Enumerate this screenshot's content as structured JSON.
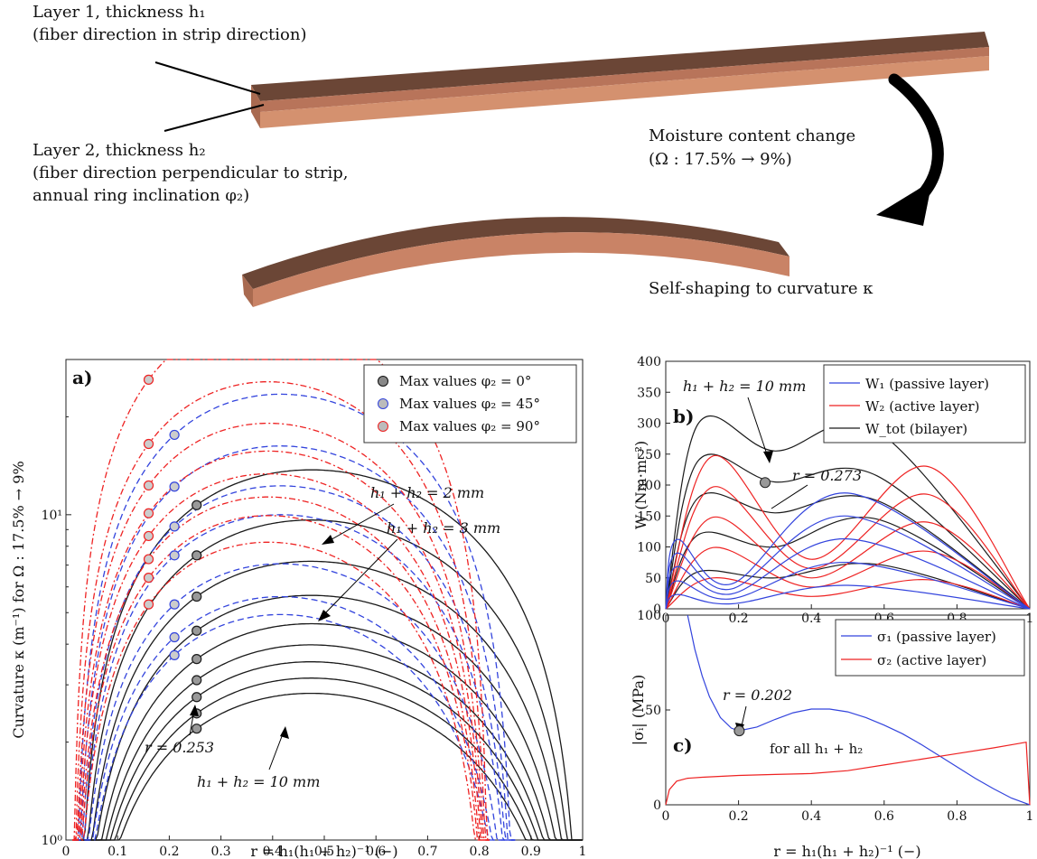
{
  "illustration": {
    "layer1_line1": "Layer 1, thickness h₁",
    "layer1_line2": "(fiber direction in strip direction)",
    "layer2_line1": "Layer 2, thickness h₂",
    "layer2_line2": "(fiber direction perpendicular to strip,",
    "layer2_line3": "annual ring inclination φ₂)",
    "moisture_line1": "Moisture content change",
    "moisture_line2": "(Ω : 17.5% → 9%)",
    "self_shaping": "Self-shaping to curvature κ",
    "colors": {
      "wood_top": "#6b4636",
      "wood_side": "#c98366",
      "arrow": "#000000"
    }
  },
  "chart_data": [
    {
      "panel": "a)",
      "type": "line",
      "xlabel": "r = h₁(h₁ + h₂)⁻¹ (−)",
      "ylabel": "Curvature κ (m⁻¹) for Ω : 17.5% → 9%",
      "xlim": [
        0,
        1
      ],
      "ylim": [
        1,
        30
      ],
      "yscale": "log",
      "xticks": [
        "0",
        "0.1",
        "0.2",
        "0.3",
        "0.4",
        "0.5",
        "0.6",
        "0.7",
        "0.8",
        "0.9",
        "1"
      ],
      "yticks": [
        "10⁰",
        "10¹"
      ],
      "legend_position": "top-right",
      "legend": [
        "Max values φ₂ = 0°",
        "Max values φ₂ = 45°",
        "Max values φ₂ = 90°"
      ],
      "annotations": [
        "h₁ + h₂ = 2 mm",
        "h₁ + h₂ = 3 mm",
        "h₁ + h₂ = 10 mm",
        "r = 0.253"
      ],
      "families": [
        {
          "phi": 0,
          "style": "solid",
          "color": "#1a1a1a",
          "r_max": 0.253,
          "x_zero": 0.02,
          "x_end": 1.0,
          "peaks": [
            10.7,
            7.5,
            5.6,
            4.4,
            3.6,
            3.1,
            2.75,
            2.45,
            2.2
          ]
        },
        {
          "phi": 45,
          "style": "dashed",
          "color": "#3344dd",
          "r_max": 0.21,
          "x_zero": 0.016,
          "x_end": 0.87,
          "peaks": [
            17.6,
            12.2,
            9.2,
            7.5,
            5.3,
            4.2,
            3.7
          ]
        },
        {
          "phi": 90,
          "style": "dashdot",
          "color": "#ee2222",
          "r_max": 0.16,
          "x_zero": 0.012,
          "x_end": 0.82,
          "peaks": [
            26.0,
            16.5,
            12.3,
            10.1,
            8.6,
            7.3,
            6.4,
            5.3
          ]
        }
      ]
    },
    {
      "panel": "b)",
      "type": "line",
      "xlabel": "",
      "ylabel": "W (Nm·m⁻²)",
      "xlim": [
        0,
        1
      ],
      "ylim": [
        0,
        400
      ],
      "xticks": [
        "0",
        "0.2",
        "0.4",
        "0.6",
        "0.8",
        "1"
      ],
      "yticks": [
        "0",
        "50",
        "100",
        "150",
        "200",
        "250",
        "300",
        "350",
        "400"
      ],
      "legend_position": "top-right",
      "legend": [
        "W₁ (passive layer)",
        "W₂ (active layer)",
        "W_tot (bilayer)"
      ],
      "annotations": [
        "h₁ + h₂ = 10 mm",
        "r = 0.273"
      ],
      "marker": {
        "x": 0.273,
        "y": 204
      },
      "series": [
        {
          "name": "W_tot (bilayer)",
          "color": "#1a1a1a",
          "peak1": [
            0.09,
            300
          ],
          "valley": [
            0.3,
            255
          ],
          "peak2": [
            0.58,
            288
          ]
        },
        {
          "name": "W_tot (bilayer)",
          "color": "#1a1a1a",
          "peak1": [
            0.09,
            240
          ],
          "valley": [
            0.3,
            205
          ],
          "peak2": [
            0.58,
            215
          ]
        },
        {
          "name": "W_tot (bilayer)",
          "color": "#1a1a1a",
          "peak1": [
            0.09,
            180
          ],
          "valley": [
            0.3,
            155
          ],
          "peak2": [
            0.58,
            175
          ]
        },
        {
          "name": "W_tot (bilayer)",
          "color": "#1a1a1a",
          "peak1": [
            0.09,
            120
          ],
          "valley": [
            0.3,
            100
          ],
          "peak2": [
            0.58,
            145
          ]
        },
        {
          "name": "W_tot (bilayer)",
          "color": "#1a1a1a",
          "peak1": [
            0.09,
            60
          ],
          "valley": [
            0.3,
            50
          ],
          "peak2": [
            0.58,
            72
          ]
        },
        {
          "name": "W₂ (active layer)",
          "color": "#ee2222",
          "peak1": [
            0.13,
            247
          ],
          "valley": [
            0.4,
            80
          ],
          "peak2": [
            0.72,
            230
          ]
        },
        {
          "name": "W₂ (active layer)",
          "color": "#ee2222",
          "peak1": [
            0.13,
            197
          ],
          "valley": [
            0.4,
            65
          ],
          "peak2": [
            0.72,
            185
          ]
        },
        {
          "name": "W₂ (active layer)",
          "color": "#ee2222",
          "peak1": [
            0.13,
            148
          ],
          "valley": [
            0.4,
            50
          ],
          "peak2": [
            0.72,
            140
          ]
        },
        {
          "name": "W₂ (active layer)",
          "color": "#ee2222",
          "peak1": [
            0.13,
            99
          ],
          "valley": [
            0.4,
            35
          ],
          "peak2": [
            0.72,
            93
          ]
        },
        {
          "name": "W₂ (active layer)",
          "color": "#ee2222",
          "peak1": [
            0.13,
            50
          ],
          "valley": [
            0.4,
            20
          ],
          "peak2": [
            0.72,
            47
          ]
        },
        {
          "name": "W₁ (passive layer)",
          "color": "#3344dd",
          "peak1": [
            0.03,
            112
          ],
          "valley": [
            0.18,
            40
          ],
          "peak2": [
            0.5,
            187
          ]
        },
        {
          "name": "W₁ (passive layer)",
          "color": "#3344dd",
          "peak1": [
            0.03,
            90
          ],
          "valley": [
            0.18,
            32
          ],
          "peak2": [
            0.5,
            150
          ]
        },
        {
          "name": "W₁ (passive layer)",
          "color": "#3344dd",
          "peak1": [
            0.03,
            68
          ],
          "valley": [
            0.18,
            24
          ],
          "peak2": [
            0.5,
            113
          ]
        },
        {
          "name": "W₁ (passive layer)",
          "color": "#3344dd",
          "peak1": [
            0.03,
            45
          ],
          "valley": [
            0.18,
            16
          ],
          "peak2": [
            0.5,
            75
          ]
        },
        {
          "name": "W₁ (passive layer)",
          "color": "#3344dd",
          "peak1": [
            0.03,
            23
          ],
          "valley": [
            0.18,
            8
          ],
          "peak2": [
            0.5,
            38
          ]
        }
      ]
    },
    {
      "panel": "c)",
      "type": "line",
      "xlabel": "r = h₁(h₁ + h₂)⁻¹ (−)",
      "ylabel": "|σᵢ| (MPa)",
      "xlim": [
        0,
        1
      ],
      "ylim": [
        0,
        100
      ],
      "xticks": [
        "0",
        "0.2",
        "0.4",
        "0.6",
        "0.8",
        "1"
      ],
      "yticks": [
        "0",
        "50",
        "100"
      ],
      "legend_position": "top-right",
      "legend": [
        "σ₁ (passive layer)",
        "σ₂ (active layer)"
      ],
      "annotations": [
        "r = 0.202",
        "for all h₁ + h₂"
      ],
      "marker": {
        "x": 0.202,
        "y": 39
      },
      "series": [
        {
          "name": "σ₁ (passive layer)",
          "color": "#3344dd",
          "x": [
            0.06,
            0.08,
            0.1,
            0.12,
            0.15,
            0.18,
            0.2,
            0.25,
            0.3,
            0.35,
            0.4,
            0.45,
            0.5,
            0.55,
            0.6,
            0.65,
            0.7,
            0.75,
            0.8,
            0.85,
            0.9,
            0.95,
            1.0
          ],
          "y": [
            100,
            82,
            68,
            57,
            46,
            40.5,
            39,
            41,
            45,
            48.5,
            50.5,
            50.5,
            49,
            46,
            42,
            37.5,
            32,
            26,
            20,
            14,
            8.5,
            3.5,
            0
          ]
        },
        {
          "name": "σ₂ (active layer)",
          "color": "#ee2222",
          "x": [
            0,
            0.01,
            0.03,
            0.06,
            0.1,
            0.15,
            0.2,
            0.3,
            0.4,
            0.5,
            0.6,
            0.7,
            0.8,
            0.9,
            0.96,
            0.99,
            1.0
          ],
          "y": [
            0,
            8,
            12.5,
            14,
            14.5,
            15,
            15.5,
            16,
            16.5,
            18,
            21,
            24,
            27,
            30,
            32,
            33,
            0
          ]
        }
      ]
    }
  ]
}
